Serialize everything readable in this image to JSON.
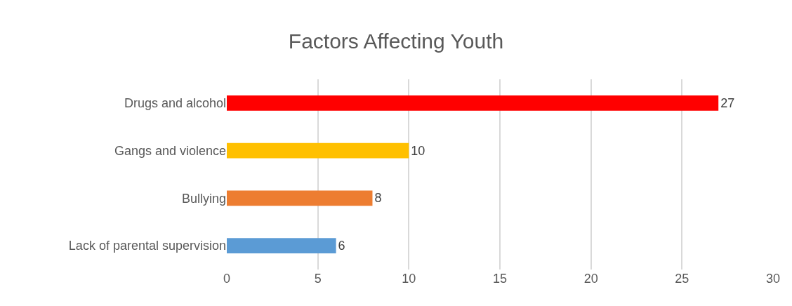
{
  "chart_data": {
    "type": "bar",
    "orientation": "horizontal",
    "title": "Factors Affecting Youth",
    "categories": [
      "Drugs and alcohol",
      "Gangs and violence",
      "Bullying",
      "Lack of parental supervision"
    ],
    "values": [
      27,
      10,
      8,
      6
    ],
    "colors": [
      "#ff0000",
      "#ffc000",
      "#ed7d31",
      "#5b9bd5"
    ],
    "xlim": [
      0,
      30
    ],
    "xticks": [
      0,
      5,
      10,
      15,
      20,
      25,
      30
    ],
    "grid": "x",
    "data_labels": true
  }
}
